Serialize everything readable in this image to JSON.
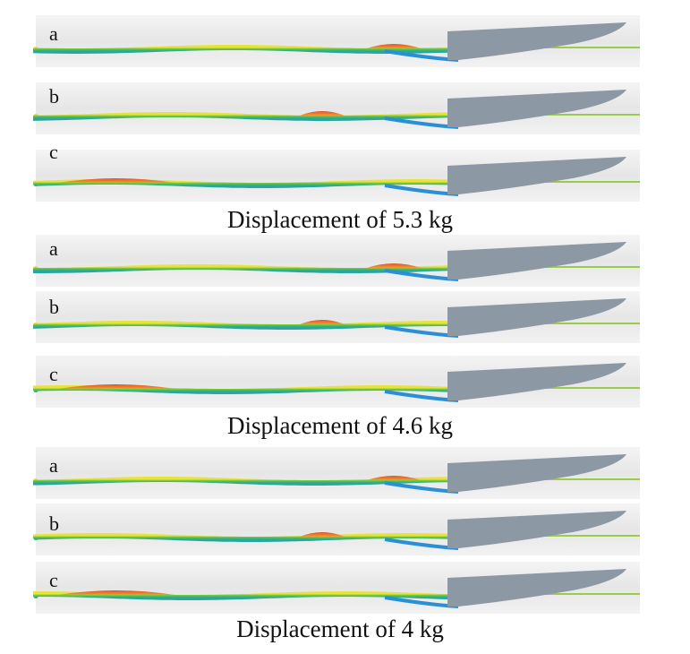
{
  "groups": [
    {
      "caption": "Displacement of 5.3 kg",
      "rows": [
        {
          "label": "a"
        },
        {
          "label": "b"
        },
        {
          "label": "c"
        }
      ]
    },
    {
      "caption": "Displacement of 4.6 kg",
      "rows": [
        {
          "label": "a"
        },
        {
          "label": "b"
        },
        {
          "label": "c"
        }
      ]
    },
    {
      "caption": "Displacement of 4 kg",
      "rows": [
        {
          "label": "a"
        },
        {
          "label": "b"
        },
        {
          "label": "c"
        }
      ]
    }
  ]
}
